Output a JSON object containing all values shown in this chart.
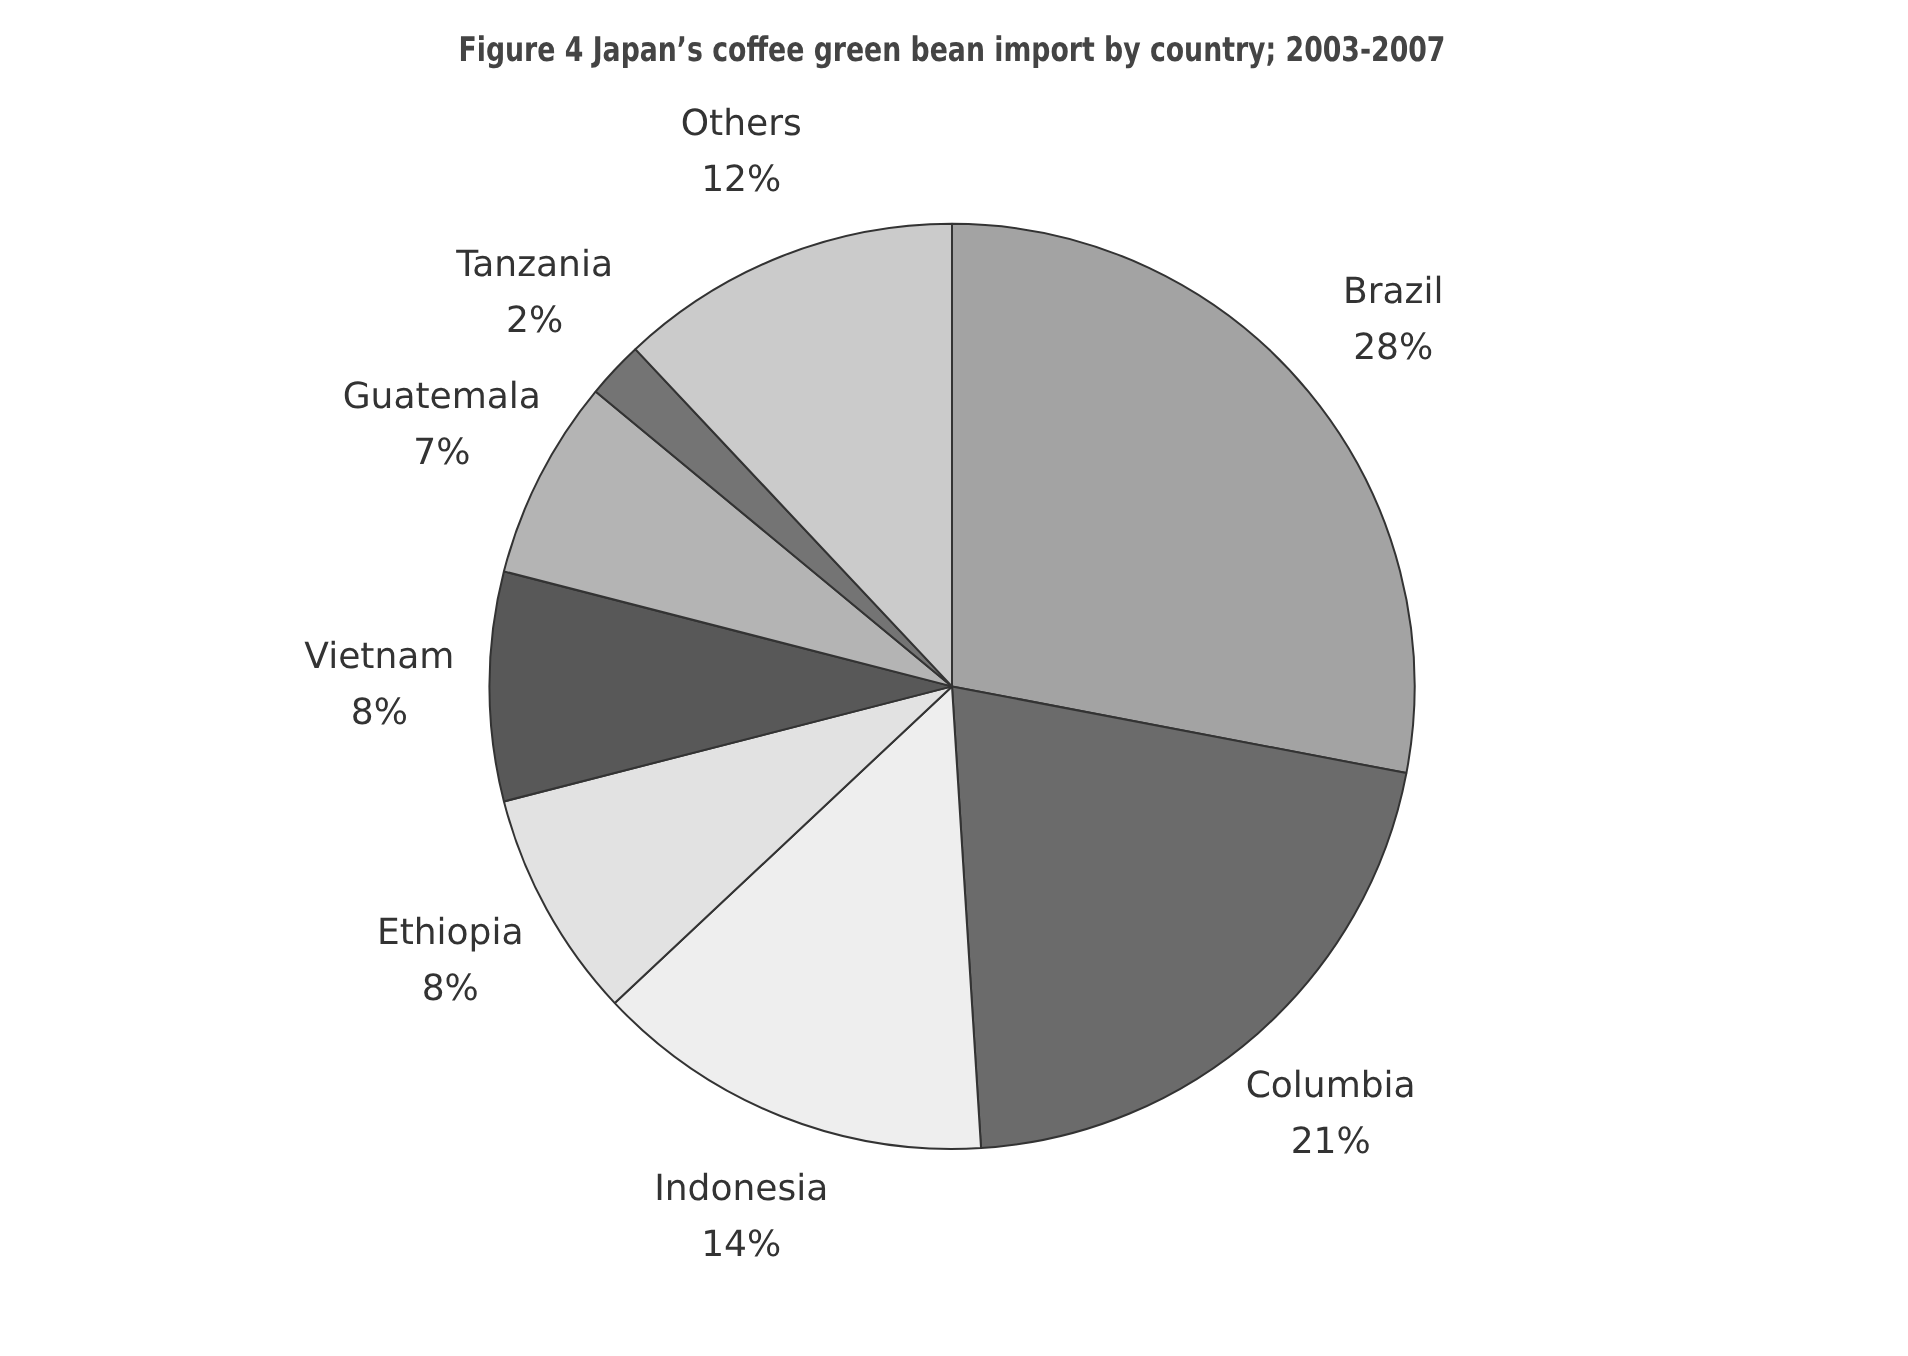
{
  "chart_data": {
    "type": "pie",
    "title": "Figure 4 Japan’s coffee green bean import by country; 2003-2007",
    "categories": [
      "Brazil",
      "Columbia",
      "Indonesia",
      "Ethiopia",
      "Vietnam",
      "Guatemala",
      "Tanzania",
      "Others"
    ],
    "values": [
      28,
      21,
      14,
      8,
      8,
      7,
      2,
      12
    ],
    "colors": [
      "#a3a3a3",
      "#6b6b6b",
      "#eeeeee",
      "#e2e2e2",
      "#585858",
      "#b4b4b4",
      "#747474",
      "#cbcbcb"
    ],
    "value_labels": [
      "28%",
      "21%",
      "14%",
      "8%",
      "8%",
      "7%",
      "2%",
      "12%"
    ]
  }
}
